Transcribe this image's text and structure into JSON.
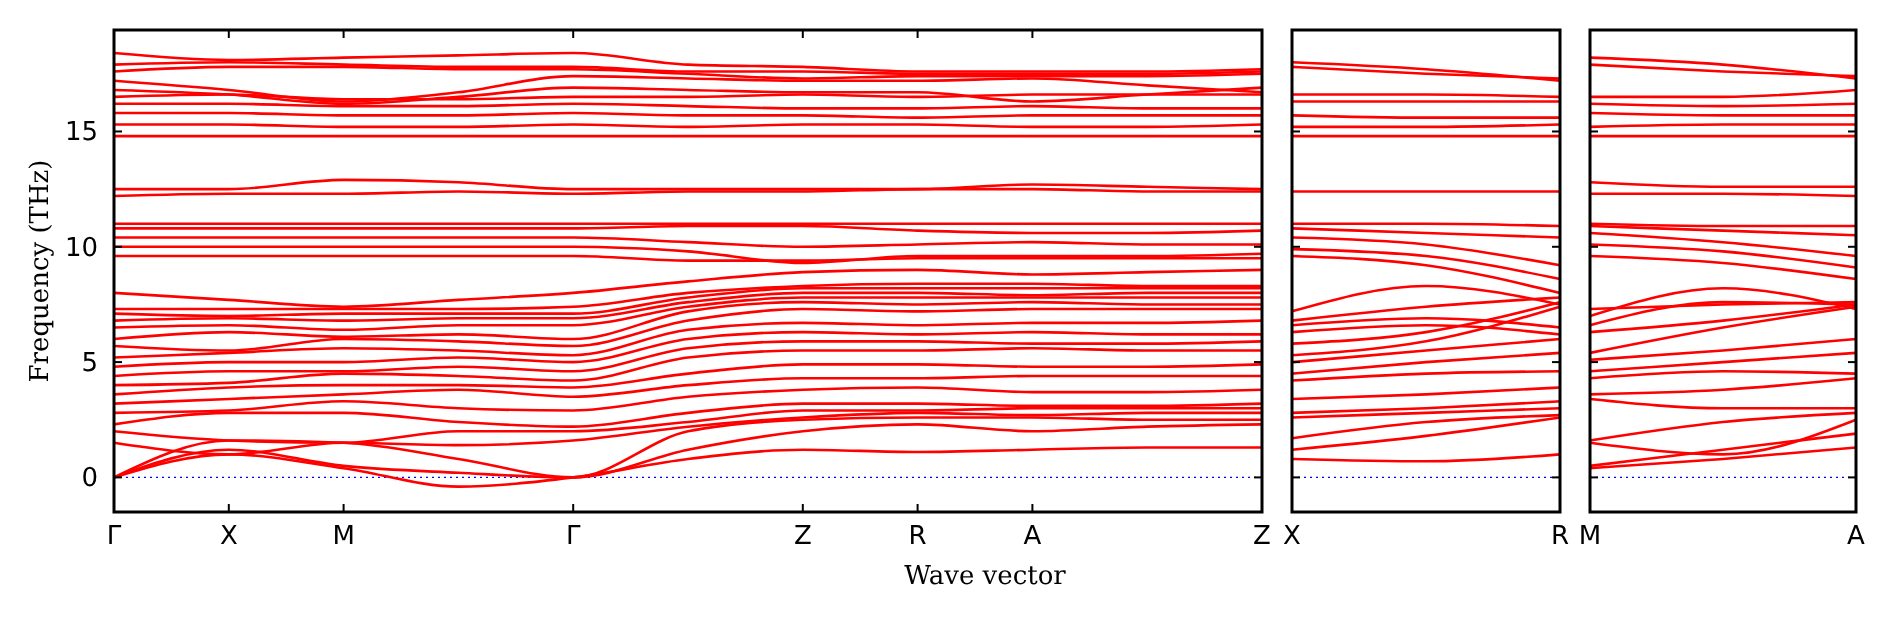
{
  "chart_data": [
    {
      "type": "line",
      "xlabel": "Wave vector",
      "ylabel": "Frequency (THz)",
      "ylim": [
        -1.5,
        19.4
      ],
      "yticks": [
        0,
        5,
        10,
        15
      ],
      "categories": [
        "Γ",
        "X",
        "M",
        null,
        "Γ",
        null,
        "Z",
        "R",
        "A",
        null,
        "Z"
      ],
      "grid": false,
      "marker": "none",
      "line_style": "solid",
      "ref_lines": [
        {
          "axis": "y",
          "value": 0,
          "color": "#0000ff",
          "line_style": "dotted"
        }
      ],
      "series": [
        {
          "color": "#ff0000",
          "values": [
            0,
            1.0,
            0.4,
            -0.4,
            0,
            0.8,
            1.2,
            1.1,
            1.2,
            1.3,
            1.3
          ]
        },
        {
          "color": "#ff0000",
          "values": [
            0,
            1.2,
            0.5,
            0.2,
            0,
            1.2,
            2.0,
            2.3,
            2.0,
            2.2,
            2.3
          ]
        },
        {
          "color": "#ff0000",
          "values": [
            0,
            1.6,
            1.5,
            0.8,
            0,
            2.0,
            2.5,
            2.6,
            2.6,
            2.5,
            2.5
          ]
        },
        {
          "color": "#ff0000",
          "values": [
            1.5,
            1.0,
            1.5,
            1.4,
            1.6,
            2.2,
            2.6,
            2.8,
            2.7,
            2.8,
            2.8
          ]
        },
        {
          "color": "#ff0000",
          "values": [
            2.0,
            1.6,
            1.5,
            2.0,
            2.0,
            2.4,
            2.9,
            2.9,
            3.0,
            3.0,
            3.0
          ]
        },
        {
          "color": "#ff0000",
          "values": [
            2.3,
            2.8,
            2.8,
            2.4,
            2.2,
            2.8,
            3.2,
            3.2,
            3.1,
            3.1,
            3.2
          ]
        },
        {
          "color": "#ff0000",
          "values": [
            2.8,
            2.9,
            3.3,
            3.0,
            2.9,
            3.5,
            3.8,
            3.9,
            3.7,
            3.7,
            3.8
          ]
        },
        {
          "color": "#ff0000",
          "values": [
            3.2,
            3.4,
            3.6,
            3.8,
            3.5,
            4.0,
            4.3,
            4.3,
            4.4,
            4.4,
            4.4
          ]
        },
        {
          "color": "#ff0000",
          "values": [
            3.6,
            3.9,
            4.0,
            4.0,
            3.9,
            4.5,
            4.9,
            4.9,
            4.8,
            4.8,
            4.9
          ]
        },
        {
          "color": "#ff0000",
          "values": [
            4.0,
            4.1,
            4.5,
            4.4,
            4.2,
            5.2,
            5.5,
            5.5,
            5.6,
            5.5,
            5.5
          ]
        },
        {
          "color": "#ff0000",
          "values": [
            4.4,
            4.6,
            4.6,
            4.8,
            4.6,
            5.6,
            5.9,
            5.9,
            5.8,
            5.8,
            5.9
          ]
        },
        {
          "color": "#ff0000",
          "values": [
            4.8,
            5.0,
            5.0,
            5.2,
            5.0,
            6.0,
            6.3,
            6.2,
            6.3,
            6.2,
            6.2
          ]
        },
        {
          "color": "#ff0000",
          "values": [
            5.2,
            5.4,
            5.6,
            5.5,
            5.3,
            6.4,
            6.7,
            6.6,
            6.7,
            6.7,
            6.8
          ]
        },
        {
          "color": "#ff0000",
          "values": [
            5.7,
            5.5,
            6.0,
            5.9,
            5.7,
            6.8,
            7.3,
            7.2,
            7.3,
            7.3,
            7.3
          ]
        },
        {
          "color": "#ff0000",
          "values": [
            6.0,
            6.3,
            6.1,
            6.2,
            6.0,
            7.2,
            7.6,
            7.5,
            7.6,
            7.5,
            7.5
          ]
        },
        {
          "color": "#ff0000",
          "values": [
            6.5,
            6.6,
            6.4,
            6.6,
            6.6,
            7.4,
            7.8,
            7.8,
            7.8,
            7.8,
            7.8
          ]
        },
        {
          "color": "#ff0000",
          "values": [
            6.8,
            6.9,
            6.8,
            6.9,
            6.9,
            7.6,
            8.0,
            8.0,
            7.9,
            8.0,
            8.0
          ]
        },
        {
          "color": "#ff0000",
          "values": [
            7.1,
            7.0,
            7.1,
            7.1,
            7.1,
            7.8,
            8.2,
            8.2,
            8.2,
            8.2,
            8.2
          ]
        },
        {
          "color": "#ff0000",
          "values": [
            7.3,
            7.3,
            7.3,
            7.3,
            7.4,
            8.0,
            8.3,
            8.4,
            8.4,
            8.3,
            8.3
          ]
        },
        {
          "color": "#ff0000",
          "values": [
            8.0,
            7.7,
            7.4,
            7.7,
            8.0,
            8.5,
            8.9,
            9.0,
            8.8,
            8.9,
            9.0
          ]
        },
        {
          "color": "#ff0000",
          "values": [
            9.6,
            9.6,
            9.6,
            9.6,
            9.6,
            9.4,
            9.4,
            9.5,
            9.5,
            9.5,
            9.5
          ]
        },
        {
          "color": "#ff0000",
          "values": [
            10.0,
            10.0,
            10.0,
            10.0,
            10.0,
            9.8,
            9.3,
            9.6,
            9.6,
            9.6,
            9.7
          ]
        },
        {
          "color": "#ff0000",
          "values": [
            10.4,
            10.4,
            10.4,
            10.4,
            10.4,
            10.2,
            10.0,
            10.1,
            10.2,
            10.1,
            10.1
          ]
        },
        {
          "color": "#ff0000",
          "values": [
            10.8,
            10.8,
            10.8,
            10.8,
            10.8,
            10.9,
            10.9,
            10.7,
            10.6,
            10.6,
            10.7
          ]
        },
        {
          "color": "#ff0000",
          "values": [
            11.0,
            11.0,
            11.0,
            11.0,
            11.0,
            11.0,
            11.0,
            11.0,
            11.0,
            11.0,
            11.0
          ]
        },
        {
          "color": "#ff0000",
          "values": [
            12.2,
            12.3,
            12.3,
            12.4,
            12.3,
            12.4,
            12.4,
            12.5,
            12.5,
            12.4,
            12.4
          ]
        },
        {
          "color": "#ff0000",
          "values": [
            12.5,
            12.5,
            12.9,
            12.8,
            12.5,
            12.5,
            12.5,
            12.5,
            12.7,
            12.6,
            12.5
          ]
        },
        {
          "color": "#ff0000",
          "values": [
            14.8,
            14.8,
            14.8,
            14.8,
            14.8,
            14.8,
            14.8,
            14.8,
            14.8,
            14.8,
            14.8
          ]
        },
        {
          "color": "#ff0000",
          "values": [
            15.3,
            15.3,
            15.2,
            15.2,
            15.3,
            15.2,
            15.3,
            15.3,
            15.2,
            15.2,
            15.3
          ]
        },
        {
          "color": "#ff0000",
          "values": [
            15.8,
            15.8,
            15.7,
            15.7,
            15.8,
            15.7,
            15.7,
            15.6,
            15.7,
            15.7,
            15.7
          ]
        },
        {
          "color": "#ff0000",
          "values": [
            16.2,
            16.2,
            16.1,
            16.1,
            16.2,
            16.1,
            16.0,
            16.0,
            16.1,
            16.0,
            16.0
          ]
        },
        {
          "color": "#ff0000",
          "values": [
            16.5,
            16.6,
            16.4,
            16.4,
            16.5,
            16.5,
            16.6,
            16.5,
            16.6,
            16.6,
            16.6
          ]
        },
        {
          "color": "#ff0000",
          "values": [
            16.8,
            16.6,
            16.2,
            16.5,
            16.9,
            16.8,
            16.7,
            16.7,
            16.3,
            16.6,
            16.9
          ]
        },
        {
          "color": "#ff0000",
          "values": [
            17.2,
            16.8,
            16.3,
            16.7,
            17.4,
            17.3,
            17.2,
            17.2,
            17.3,
            17.0,
            16.7
          ]
        },
        {
          "color": "#ff0000",
          "values": [
            17.6,
            17.8,
            17.8,
            17.7,
            17.7,
            17.5,
            17.3,
            17.4,
            17.4,
            17.4,
            17.5
          ]
        },
        {
          "color": "#ff0000",
          "values": [
            17.9,
            18.0,
            17.9,
            17.8,
            17.8,
            17.6,
            17.6,
            17.5,
            17.5,
            17.5,
            17.6
          ]
        },
        {
          "color": "#ff0000",
          "values": [
            18.4,
            18.1,
            18.2,
            18.3,
            18.4,
            17.9,
            17.8,
            17.6,
            17.6,
            17.6,
            17.7
          ]
        }
      ]
    },
    {
      "type": "line",
      "ylim": [
        -1.5,
        19.4
      ],
      "yticks": [
        0,
        5,
        10,
        15
      ],
      "tick_labels": "x",
      "categories": [
        "X",
        null,
        "R"
      ],
      "grid": false,
      "marker": "none",
      "line_style": "solid",
      "ref_lines": [
        {
          "axis": "y",
          "value": 0,
          "color": "#0000ff",
          "line_style": "dotted"
        }
      ],
      "series": [
        {
          "color": "#ff0000",
          "values": [
            0.8,
            0.7,
            1.0
          ]
        },
        {
          "color": "#ff0000",
          "values": [
            1.2,
            1.8,
            2.6
          ]
        },
        {
          "color": "#ff0000",
          "values": [
            1.7,
            2.4,
            2.7
          ]
        },
        {
          "color": "#ff0000",
          "values": [
            2.6,
            2.8,
            3.0
          ]
        },
        {
          "color": "#ff0000",
          "values": [
            2.8,
            3.0,
            3.3
          ]
        },
        {
          "color": "#ff0000",
          "values": [
            3.4,
            3.6,
            3.9
          ]
        },
        {
          "color": "#ff0000",
          "values": [
            4.2,
            4.5,
            4.6
          ]
        },
        {
          "color": "#ff0000",
          "values": [
            4.5,
            5.0,
            5.4
          ]
        },
        {
          "color": "#ff0000",
          "values": [
            5.0,
            5.5,
            6.0
          ]
        },
        {
          "color": "#ff0000",
          "values": [
            5.3,
            5.9,
            7.4
          ]
        },
        {
          "color": "#ff0000",
          "values": [
            5.8,
            6.3,
            7.6
          ]
        },
        {
          "color": "#ff0000",
          "values": [
            6.3,
            6.6,
            6.2
          ]
        },
        {
          "color": "#ff0000",
          "values": [
            6.6,
            6.9,
            6.5
          ]
        },
        {
          "color": "#ff0000",
          "values": [
            6.8,
            7.4,
            7.8
          ]
        },
        {
          "color": "#ff0000",
          "values": [
            7.2,
            8.3,
            7.5
          ]
        },
        {
          "color": "#ff0000",
          "values": [
            9.6,
            9.2,
            8.0
          ]
        },
        {
          "color": "#ff0000",
          "values": [
            9.9,
            9.6,
            8.6
          ]
        },
        {
          "color": "#ff0000",
          "values": [
            10.4,
            10.1,
            9.2
          ]
        },
        {
          "color": "#ff0000",
          "values": [
            10.8,
            10.6,
            10.4
          ]
        },
        {
          "color": "#ff0000",
          "values": [
            11.0,
            11.0,
            10.9
          ]
        },
        {
          "color": "#ff0000",
          "values": [
            12.4,
            12.4,
            12.4
          ]
        },
        {
          "color": "#ff0000",
          "values": [
            14.8,
            14.8,
            14.8
          ]
        },
        {
          "color": "#ff0000",
          "values": [
            15.2,
            15.2,
            15.3
          ]
        },
        {
          "color": "#ff0000",
          "values": [
            15.7,
            15.6,
            15.6
          ]
        },
        {
          "color": "#ff0000",
          "values": [
            16.3,
            16.3,
            16.3
          ]
        },
        {
          "color": "#ff0000",
          "values": [
            16.6,
            16.6,
            16.5
          ]
        },
        {
          "color": "#ff0000",
          "values": [
            17.8,
            17.5,
            17.3
          ]
        },
        {
          "color": "#ff0000",
          "values": [
            18.0,
            17.7,
            17.2
          ]
        }
      ]
    },
    {
      "type": "line",
      "ylim": [
        -1.5,
        19.4
      ],
      "yticks": [
        0,
        5,
        10,
        15
      ],
      "tick_labels": "x",
      "categories": [
        "M",
        null,
        "A"
      ],
      "grid": false,
      "marker": "none",
      "line_style": "solid",
      "ref_lines": [
        {
          "axis": "y",
          "value": 0,
          "color": "#0000ff",
          "line_style": "dotted"
        }
      ],
      "series": [
        {
          "color": "#ff0000",
          "values": [
            0.4,
            0.8,
            1.3
          ]
        },
        {
          "color": "#ff0000",
          "values": [
            0.5,
            1.2,
            1.9
          ]
        },
        {
          "color": "#ff0000",
          "values": [
            1.5,
            1.0,
            2.5
          ]
        },
        {
          "color": "#ff0000",
          "values": [
            1.6,
            2.4,
            2.8
          ]
        },
        {
          "color": "#ff0000",
          "values": [
            3.4,
            3.0,
            3.0
          ]
        },
        {
          "color": "#ff0000",
          "values": [
            3.6,
            3.8,
            4.3
          ]
        },
        {
          "color": "#ff0000",
          "values": [
            4.3,
            4.6,
            4.5
          ]
        },
        {
          "color": "#ff0000",
          "values": [
            4.6,
            5.0,
            5.4
          ]
        },
        {
          "color": "#ff0000",
          "values": [
            5.1,
            5.5,
            6.0
          ]
        },
        {
          "color": "#ff0000",
          "values": [
            5.4,
            6.5,
            7.4
          ]
        },
        {
          "color": "#ff0000",
          "values": [
            6.3,
            6.8,
            7.5
          ]
        },
        {
          "color": "#ff0000",
          "values": [
            6.6,
            7.6,
            7.5
          ]
        },
        {
          "color": "#ff0000",
          "values": [
            7.0,
            8.2,
            7.3
          ]
        },
        {
          "color": "#ff0000",
          "values": [
            7.3,
            7.5,
            7.6
          ]
        },
        {
          "color": "#ff0000",
          "values": [
            9.6,
            9.3,
            8.6
          ]
        },
        {
          "color": "#ff0000",
          "values": [
            10.1,
            9.8,
            9.1
          ]
        },
        {
          "color": "#ff0000",
          "values": [
            10.6,
            10.2,
            9.6
          ]
        },
        {
          "color": "#ff0000",
          "values": [
            10.9,
            10.7,
            10.5
          ]
        },
        {
          "color": "#ff0000",
          "values": [
            11.0,
            10.9,
            10.9
          ]
        },
        {
          "color": "#ff0000",
          "values": [
            12.3,
            12.3,
            12.2
          ]
        },
        {
          "color": "#ff0000",
          "values": [
            12.8,
            12.6,
            12.6
          ]
        },
        {
          "color": "#ff0000",
          "values": [
            14.8,
            14.8,
            14.8
          ]
        },
        {
          "color": "#ff0000",
          "values": [
            15.2,
            15.3,
            15.3
          ]
        },
        {
          "color": "#ff0000",
          "values": [
            15.8,
            15.7,
            15.7
          ]
        },
        {
          "color": "#ff0000",
          "values": [
            16.2,
            16.1,
            16.2
          ]
        },
        {
          "color": "#ff0000",
          "values": [
            16.5,
            16.5,
            16.8
          ]
        },
        {
          "color": "#ff0000",
          "values": [
            17.9,
            17.6,
            17.4
          ]
        },
        {
          "color": "#ff0000",
          "values": [
            18.2,
            17.9,
            17.3
          ]
        }
      ]
    }
  ]
}
